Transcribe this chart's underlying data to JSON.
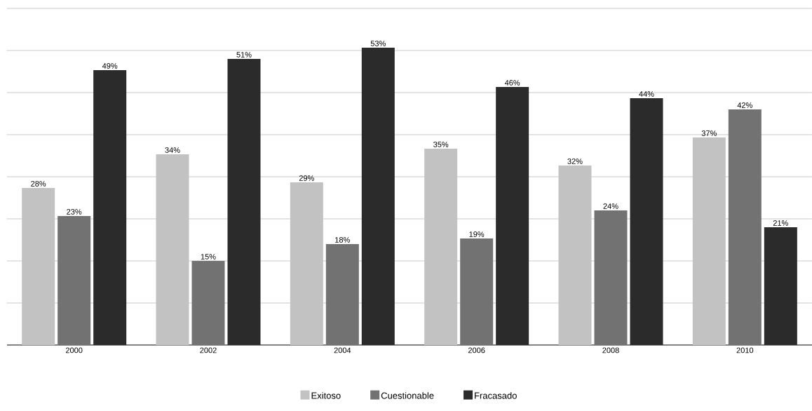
{
  "chart_data": {
    "type": "bar",
    "categories": [
      "2000",
      "2002",
      "2004",
      "2006",
      "2008",
      "2010"
    ],
    "series": [
      {
        "name": "Exitoso",
        "color": "#c2c2c2",
        "values": [
          28,
          34,
          29,
          35,
          32,
          37
        ],
        "value_labels": [
          "28%",
          "34%",
          "29%",
          "35%",
          "32%",
          "37%"
        ]
      },
      {
        "name": "Cuestionable",
        "color": "#727272",
        "values": [
          23,
          15,
          18,
          19,
          24,
          42
        ],
        "value_labels": [
          "23%",
          "15%",
          "18%",
          "19%",
          "24%",
          "42%"
        ]
      },
      {
        "name": "Fracasado",
        "color": "#2b2b2b",
        "values": [
          49,
          51,
          53,
          46,
          44,
          21
        ],
        "value_labels": [
          "49%",
          "51%",
          "53%",
          "46%",
          "44%",
          "21%"
        ]
      }
    ],
    "ylim": [
      0,
      60
    ],
    "yticks": [
      {
        "value": 0,
        "label": null
      },
      {
        "value": 7.5,
        "label": null
      },
      {
        "value": 15,
        "label": null
      },
      {
        "value": 22.5,
        "label": null
      },
      {
        "value": 30,
        "label": null
      },
      {
        "value": 37.5,
        "label": null
      },
      {
        "value": 45,
        "label": null
      },
      {
        "value": 52.5,
        "label": null
      },
      {
        "value": 60,
        "label": null
      }
    ],
    "tick_labels": "x",
    "grid": "y",
    "legend": "bottom"
  }
}
